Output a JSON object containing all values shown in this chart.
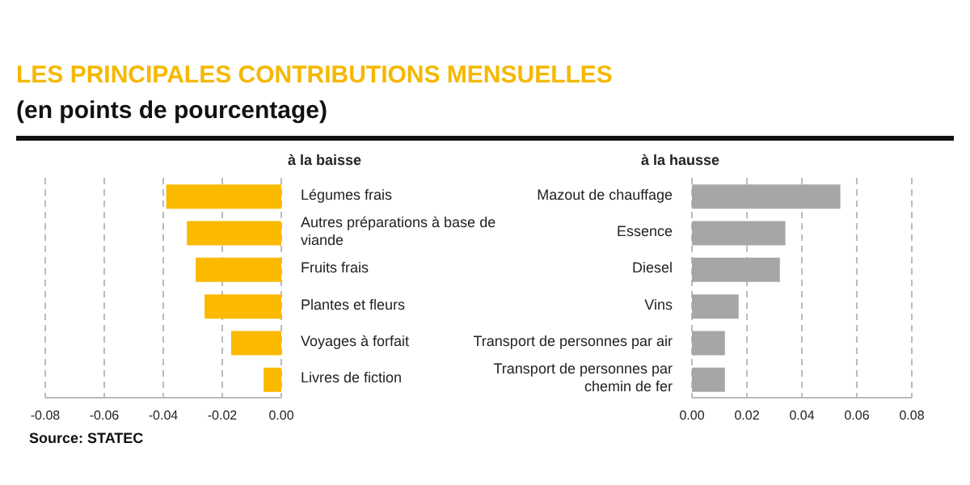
{
  "chart_data": [
    {
      "type": "bar",
      "orientation": "horizontal",
      "title": "LES PRINCIPALES CONTRIBUTIONS MENSUELLES",
      "subtitle": "(en points de pourcentage)",
      "annotations": [
        "à la baisse",
        "Source: STATEC"
      ],
      "categories": [
        "Légumes frais",
        "Autres préparations à base de viande",
        "Fruits frais",
        "Plantes et fleurs",
        "Voyages à forfait",
        "Livres de fiction"
      ],
      "values": [
        -0.039,
        -0.032,
        -0.029,
        -0.026,
        -0.017,
        -0.006
      ],
      "color": "#fbb900",
      "xlim": [
        -0.08,
        0
      ],
      "xticks": [
        {
          "value": -0.08,
          "label": "-0.08"
        },
        {
          "value": -0.06,
          "label": "-0.06"
        },
        {
          "value": -0.04,
          "label": "-0.04"
        },
        {
          "value": -0.02,
          "label": "-0.02"
        },
        {
          "value": 0,
          "label": "0.00"
        }
      ],
      "grid": "x",
      "legend": false
    },
    {
      "type": "bar",
      "orientation": "horizontal",
      "title": "à la hausse",
      "categories": [
        "Mazout de chauffage",
        "Essence",
        "Diesel",
        "Vins",
        "Transport de personnes par air",
        "Transport de personnes par chemin de fer"
      ],
      "values": [
        0.054,
        0.034,
        0.032,
        0.017,
        0.012,
        0.012
      ],
      "color": "#a6a6a6",
      "xlim": [
        0,
        0.08
      ],
      "xticks": [
        {
          "value": 0,
          "label": "0.00"
        },
        {
          "value": 0.02,
          "label": "0.02"
        },
        {
          "value": 0.04,
          "label": "0.04"
        },
        {
          "value": 0.06,
          "label": "0.06"
        },
        {
          "value": 0.08,
          "label": "0.08"
        }
      ],
      "grid": "x",
      "legend": false
    }
  ]
}
